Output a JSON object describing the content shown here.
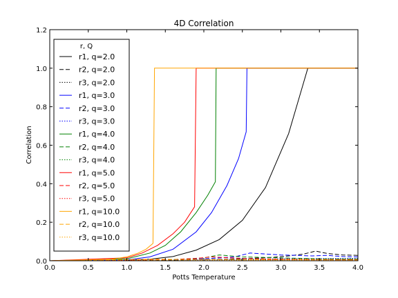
{
  "chart_data": {
    "type": "line",
    "title": "4D Correlation",
    "xlabel": "Potts Temperature",
    "ylabel": "Correlation",
    "xlim": [
      0.0,
      4.0
    ],
    "ylim": [
      0.0,
      1.2
    ],
    "xticks": [
      "0.0",
      "0.5",
      "1.0",
      "1.5",
      "2.0",
      "2.5",
      "3.0",
      "3.5",
      "4.0"
    ],
    "yticks": [
      "0.0",
      "0.2",
      "0.4",
      "0.6",
      "0.8",
      "1.0",
      "1.2"
    ],
    "grid": false,
    "legend": {
      "title": "r, Q",
      "placement": "upper-left"
    },
    "series": [
      {
        "name": "r1, q=2.0",
        "color": "#000000",
        "dash": "solid",
        "x": [
          0,
          1.0,
          1.3,
          1.6,
          1.9,
          2.2,
          2.5,
          2.8,
          3.1,
          3.35,
          4.0
        ],
        "y": [
          0,
          0.002,
          0.008,
          0.022,
          0.055,
          0.11,
          0.21,
          0.38,
          0.66,
          1.0,
          1.0
        ]
      },
      {
        "name": "r2, q=2.0",
        "color": "#000000",
        "dash": "dashed",
        "x": [
          0,
          1.5,
          2.0,
          2.3,
          2.6,
          2.9,
          3.1,
          3.3,
          3.45,
          3.6,
          3.8,
          4.0
        ],
        "y": [
          0,
          0.003,
          0.006,
          0.008,
          0.012,
          0.018,
          0.025,
          0.035,
          0.05,
          0.038,
          0.03,
          0.028
        ]
      },
      {
        "name": "r3, q=2.0",
        "color": "#000000",
        "dash": "dotted",
        "x": [
          0,
          2.0,
          3.0,
          4.0
        ],
        "y": [
          0,
          0.003,
          0.006,
          0.008
        ]
      },
      {
        "name": "r1, q=3.0",
        "color": "#0000ff",
        "dash": "solid",
        "x": [
          0,
          1.0,
          1.3,
          1.6,
          1.9,
          2.1,
          2.3,
          2.45,
          2.55,
          2.56,
          4.0
        ],
        "y": [
          0,
          0.004,
          0.02,
          0.06,
          0.15,
          0.25,
          0.39,
          0.53,
          0.67,
          1.0,
          1.0
        ]
      },
      {
        "name": "r2, q=3.0",
        "color": "#0000ff",
        "dash": "dashed",
        "x": [
          0,
          1.5,
          2.0,
          2.4,
          2.6,
          2.8,
          3.0,
          3.2,
          3.4,
          3.6,
          3.8,
          4.0
        ],
        "y": [
          0,
          0.004,
          0.01,
          0.02,
          0.04,
          0.035,
          0.03,
          0.028,
          0.025,
          0.028,
          0.022,
          0.02
        ]
      },
      {
        "name": "r3, q=3.0",
        "color": "#0000ff",
        "dash": "dotted",
        "x": [
          0,
          2.0,
          3.0,
          4.0
        ],
        "y": [
          0,
          0.005,
          0.01,
          0.012
        ]
      },
      {
        "name": "r1, q=4.0",
        "color": "#008000",
        "dash": "solid",
        "x": [
          0,
          1.0,
          1.3,
          1.5,
          1.7,
          1.9,
          2.05,
          2.15,
          2.16,
          4.0
        ],
        "y": [
          0,
          0.01,
          0.04,
          0.08,
          0.15,
          0.25,
          0.34,
          0.41,
          1.0,
          1.0
        ]
      },
      {
        "name": "r2, q=4.0",
        "color": "#008000",
        "dash": "dashed",
        "x": [
          0,
          1.5,
          2.0,
          2.2,
          2.5,
          3.0,
          3.5,
          4.0
        ],
        "y": [
          0,
          0.004,
          0.015,
          0.03,
          0.02,
          0.015,
          0.01,
          0.008
        ]
      },
      {
        "name": "r3, q=4.0",
        "color": "#008000",
        "dash": "dotted",
        "x": [
          0,
          2.0,
          3.0,
          4.0
        ],
        "y": [
          0,
          0.004,
          0.008,
          0.01
        ]
      },
      {
        "name": "r1, q=5.0",
        "color": "#ff0000",
        "dash": "solid",
        "x": [
          0,
          1.0,
          1.2,
          1.4,
          1.6,
          1.75,
          1.88,
          1.9,
          4.0
        ],
        "y": [
          0,
          0.015,
          0.04,
          0.08,
          0.14,
          0.2,
          0.28,
          1.0,
          1.0
        ]
      },
      {
        "name": "r2, q=5.0",
        "color": "#ff0000",
        "dash": "dashed",
        "x": [
          0,
          1.5,
          1.9,
          2.1,
          2.5,
          3.0,
          3.5,
          4.0
        ],
        "y": [
          0,
          0.005,
          0.012,
          0.02,
          0.012,
          0.008,
          0.006,
          0.005
        ]
      },
      {
        "name": "r3, q=5.0",
        "color": "#ff0000",
        "dash": "dotted",
        "x": [
          0,
          2.0,
          3.0,
          4.0
        ],
        "y": [
          0,
          0.003,
          0.005,
          0.006
        ]
      },
      {
        "name": "r1, q=10.0",
        "color": "#ffa500",
        "dash": "solid",
        "x": [
          0,
          0.8,
          1.0,
          1.15,
          1.25,
          1.34,
          1.36,
          4.0
        ],
        "y": [
          0,
          0.008,
          0.02,
          0.04,
          0.06,
          0.09,
          1.0,
          1.0
        ]
      },
      {
        "name": "r2, q=10.0",
        "color": "#ffa500",
        "dash": "dashed",
        "x": [
          0,
          1.0,
          1.4,
          2.0,
          3.0,
          4.0
        ],
        "y": [
          0,
          0.006,
          0.008,
          0.006,
          0.005,
          0.004
        ]
      },
      {
        "name": "r3, q=10.0",
        "color": "#ffa500",
        "dash": "dotted",
        "x": [
          0,
          1.0,
          2.0,
          3.0,
          4.0
        ],
        "y": [
          0,
          0.004,
          0.003,
          0.003,
          0.003
        ]
      }
    ]
  }
}
